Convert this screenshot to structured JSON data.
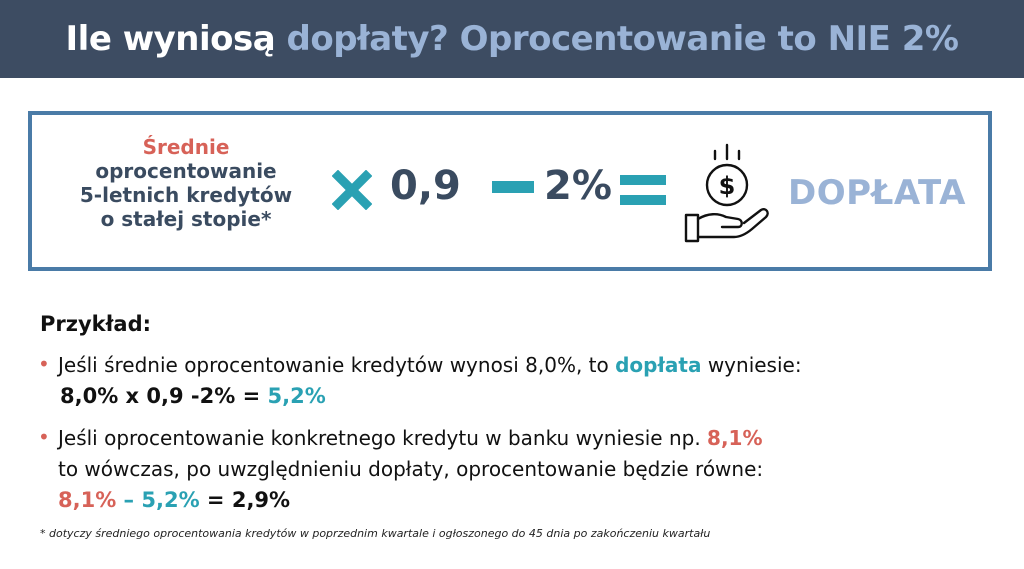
{
  "header": {
    "title_part1": "Ile wyniosą",
    "title_part2": "dopłaty? Oprocentowanie to NIE 2%",
    "bg_color": "#3d4c62"
  },
  "formula": {
    "avg_line1": "Średnie",
    "avg_line2": "oprocentowanie",
    "avg_line3": "5-letnich kredytów",
    "avg_line4": "o stałej stopie*",
    "multiplier": "0,9",
    "subtract": "2%",
    "result": "DOPŁATA",
    "icons": [
      "times-icon",
      "minus-icon",
      "equals-icon",
      "money-hand-icon"
    ],
    "accent_color": "#2aa1b3",
    "border_color": "#4a7ba7"
  },
  "example": {
    "title": "Przykład:",
    "b1_text": "Jeśli średnie oprocentowanie kredytów wynosi  8,0%, to ",
    "b1_highlight": "dopłata",
    "b1_text_end": " wyniesie:",
    "b1_calc": "8,0% x 0,9 -2% = ",
    "b1_result": "5,2%",
    "b2_text": "Jeśli oprocentowanie konkretnego kredytu w banku wyniesie np. ",
    "b2_highlight": "8,1%",
    "b2_line2": "to wówczas, po uwzględnieniu dopłaty, oprocentowanie będzie równe:",
    "b2_calc_a": "8,1%",
    "b2_calc_op": " – ",
    "b2_calc_b": "5,2%",
    "b2_calc_result": " = 2,9%"
  },
  "footnote": "* dotyczy średniego oprocentowania kredytów w poprzednim kwartale i ogłoszonego do 45 dnia po zakończeniu kwartału"
}
